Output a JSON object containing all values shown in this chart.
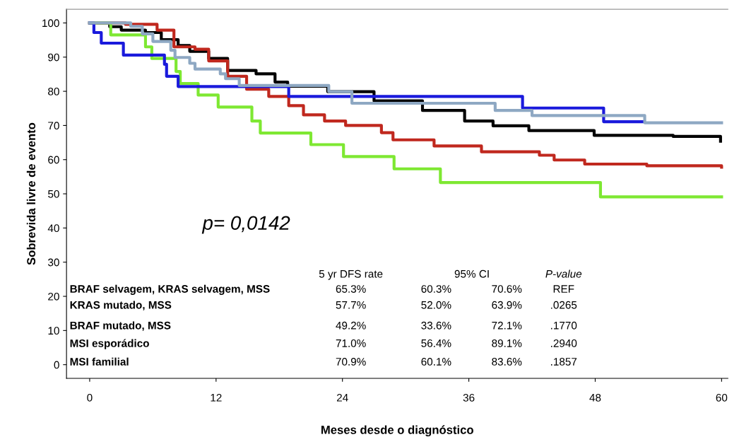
{
  "chart_data": {
    "type": "step",
    "xlabel": "Meses desde o diagnóstico",
    "ylabel": "Sobrevida livre de evento",
    "xlim": [
      -2.2,
      60.6
    ],
    "ylim": [
      -4,
      104
    ],
    "xticks": [
      0,
      12,
      24,
      36,
      48,
      60
    ],
    "yticks": [
      0,
      10,
      20,
      30,
      40,
      50,
      60,
      70,
      80,
      90,
      100
    ],
    "grid": false,
    "legend": false,
    "series": [
      {
        "color": "#000000",
        "x": [
          0,
          1.9,
          3.0,
          5.3,
          6.8,
          8.4,
          9.5,
          11.3,
          13.1,
          15.8,
          17.6,
          18.8,
          22.6,
          27.0,
          31.6,
          35.6,
          38.3,
          41.7,
          47.9,
          55.4,
          59.9
        ],
        "values": [
          100,
          98.9,
          97.9,
          97.2,
          95.1,
          93.4,
          91.7,
          89.6,
          86.1,
          85.1,
          82.7,
          81.5,
          79.9,
          77.2,
          74.4,
          71.3,
          69.9,
          68.5,
          67.1,
          66.8,
          65.4
        ]
      },
      {
        "color": "#c0281e",
        "x": [
          0,
          3.4,
          6.4,
          8.0,
          10.0,
          11.3,
          13.1,
          14.9,
          17.0,
          18.9,
          20.3,
          22.3,
          24.3,
          27.7,
          28.8,
          32.7,
          37.2,
          42.7,
          44.1,
          47.0,
          52.9,
          60.0
        ],
        "values": [
          100,
          99.6,
          97.9,
          93.0,
          92.3,
          88.9,
          84.4,
          80.6,
          78.5,
          75.8,
          73.1,
          71.3,
          70.0,
          67.9,
          65.8,
          64.0,
          62.3,
          61.3,
          59.9,
          58.7,
          58.2,
          57.8
        ]
      },
      {
        "color": "#7ee832",
        "x": [
          0,
          2.0,
          5.3,
          5.9,
          8.2,
          8.6,
          10.3,
          12.2,
          15.4,
          16.2,
          21.0,
          24.1,
          28.9,
          33.3,
          48.5,
          60.0
        ],
        "values": [
          100,
          96.5,
          93.0,
          89.6,
          85.8,
          82.3,
          78.9,
          75.4,
          71.3,
          67.8,
          64.4,
          60.9,
          57.3,
          53.3,
          49.1,
          49.1
        ]
      },
      {
        "color": "#1a1adc",
        "x": [
          0,
          0.4,
          1.1,
          3.2,
          7.1,
          7.3,
          8.4,
          18.9,
          41.1,
          48.8,
          52.6
        ],
        "values": [
          100,
          97.2,
          94.1,
          90.6,
          87.9,
          84.4,
          81.4,
          78.5,
          75.1,
          71.1,
          71.1
        ]
      },
      {
        "color": "#8ea8c3",
        "x": [
          0,
          3.9,
          5.0,
          6.0,
          7.7,
          8.1,
          9.5,
          10.0,
          12.4,
          12.9,
          14.2,
          22.7,
          24.9,
          38.5,
          42.0,
          52.7,
          60.0
        ],
        "values": [
          100,
          99.0,
          96.8,
          94.6,
          92.0,
          89.9,
          88.2,
          86.5,
          85.1,
          83.7,
          81.7,
          79.9,
          76.5,
          74.4,
          72.9,
          70.8,
          70.8
        ]
      }
    ],
    "annotations": [
      "p= 0,0142",
      "5 yr DFS rate",
      "95% CI",
      "P-value",
      "BRAF selvagem, KRAS selvagem, MSS",
      "65.3%",
      "60.3%",
      "70.6%",
      "REF",
      "KRAS mutado, MSS",
      "57.7%",
      "52.0%",
      "63.9%",
      ".0265",
      "BRAF mutado, MSS",
      "49.2%",
      "33.6%",
      "72.1%",
      ".1770",
      "MSI esporádico",
      "71.0%",
      "56.4%",
      "89.1%",
      ".2940",
      "MSI familial",
      "70.9%",
      "60.1%",
      "83.6%",
      ".1857"
    ]
  }
}
